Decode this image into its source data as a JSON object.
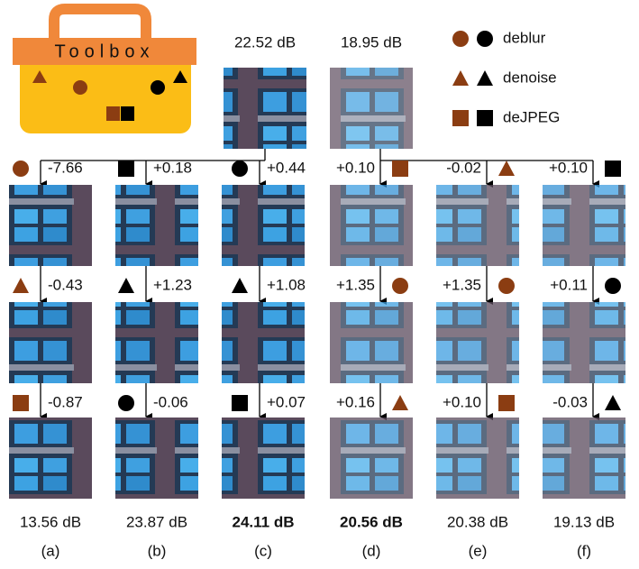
{
  "toolbox": {
    "label": "Toolbox"
  },
  "sources": [
    {
      "psnr": "22.52 dB"
    },
    {
      "psnr": "18.95 dB"
    }
  ],
  "legend": [
    {
      "label": "deblur",
      "shape": "circle"
    },
    {
      "label": "denoise",
      "shape": "triangle"
    },
    {
      "label": "deJPEG",
      "shape": "square"
    }
  ],
  "legend_colors": [
    "#8b3d12",
    "#000000"
  ],
  "columns": [
    {
      "letter": "(a)",
      "final": "13.56 dB",
      "bold": false,
      "icon_side": "left",
      "steps": [
        {
          "tool": "circle",
          "color": "#8b3d12",
          "delta": "-7.66"
        },
        {
          "tool": "triangle",
          "color": "#8b3d12",
          "delta": "-0.43"
        },
        {
          "tool": "square",
          "color": "#8b3d12",
          "delta": "-0.87"
        }
      ]
    },
    {
      "letter": "(b)",
      "final": "23.87 dB",
      "bold": false,
      "icon_side": "left",
      "steps": [
        {
          "tool": "square",
          "color": "#000000",
          "delta": "+0.18"
        },
        {
          "tool": "triangle",
          "color": "#000000",
          "delta": "+1.23"
        },
        {
          "tool": "circle",
          "color": "#000000",
          "delta": "-0.06"
        }
      ]
    },
    {
      "letter": "(c)",
      "final": "24.11 dB",
      "bold": true,
      "icon_side": "left",
      "steps": [
        {
          "tool": "circle",
          "color": "#000000",
          "delta": "+0.44"
        },
        {
          "tool": "triangle",
          "color": "#000000",
          "delta": "+1.08"
        },
        {
          "tool": "square",
          "color": "#000000",
          "delta": "+0.07"
        }
      ]
    },
    {
      "letter": "(d)",
      "final": "20.56 dB",
      "bold": true,
      "icon_side": "right",
      "steps": [
        {
          "tool": "square",
          "color": "#8b3d12",
          "delta": "+0.10"
        },
        {
          "tool": "circle",
          "color": "#8b3d12",
          "delta": "+1.35"
        },
        {
          "tool": "triangle",
          "color": "#8b3d12",
          "delta": "+0.16"
        }
      ]
    },
    {
      "letter": "(e)",
      "final": "20.38 dB",
      "bold": false,
      "icon_side": "right",
      "steps": [
        {
          "tool": "triangle",
          "color": "#8b3d12",
          "delta": "-0.02"
        },
        {
          "tool": "circle",
          "color": "#8b3d12",
          "delta": "+1.35"
        },
        {
          "tool": "square",
          "color": "#8b3d12",
          "delta": "+0.10"
        }
      ]
    },
    {
      "letter": "(f)",
      "final": "19.13 dB",
      "bold": false,
      "icon_side": "right",
      "steps": [
        {
          "tool": "square",
          "color": "#000000",
          "delta": "+0.10"
        },
        {
          "tool": "circle",
          "color": "#000000",
          "delta": "+0.11"
        },
        {
          "tool": "triangle",
          "color": "#000000",
          "delta": "-0.03"
        }
      ]
    }
  ]
}
